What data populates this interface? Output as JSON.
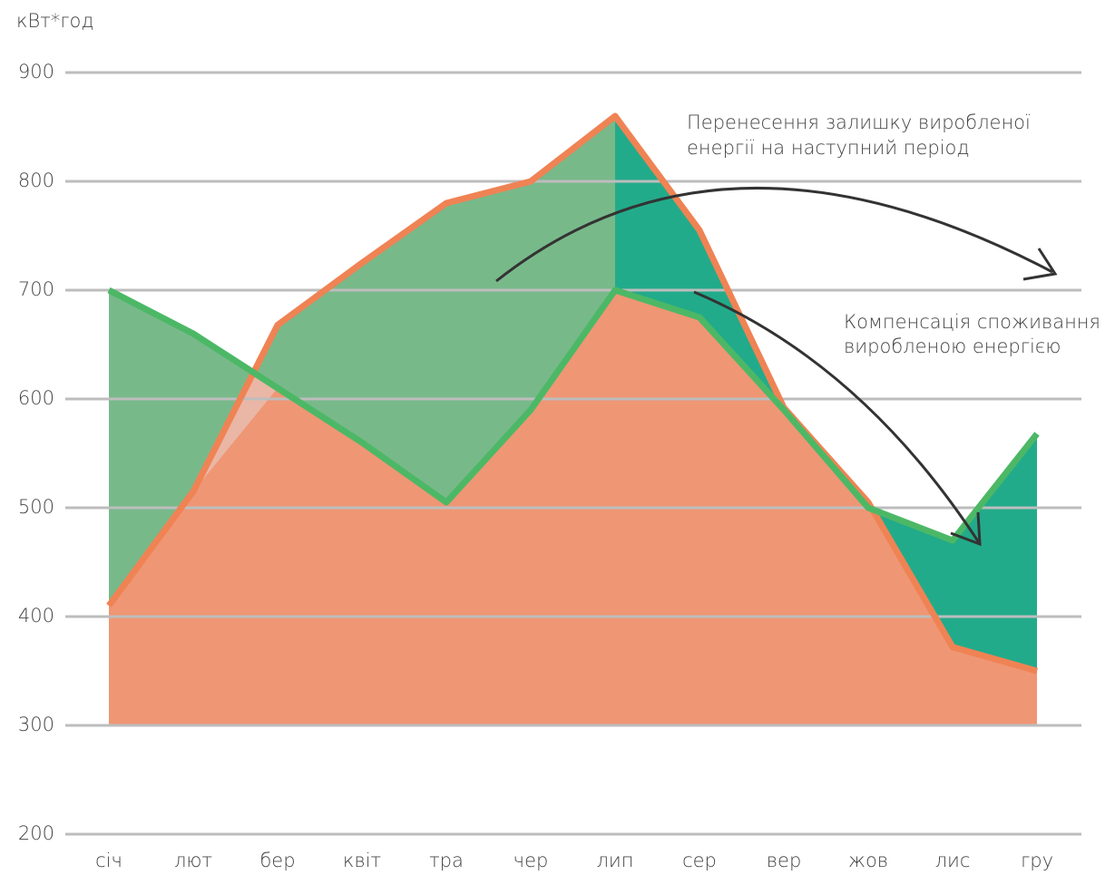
{
  "chart_data": {
    "type": "area",
    "y_axis_label": "кВт*год",
    "categories": [
      "січ",
      "лют",
      "бер",
      "квіт",
      "тра",
      "чер",
      "лип",
      "сер",
      "вер",
      "жов",
      "лис",
      "гру"
    ],
    "series": [
      {
        "color": "#ef8354",
        "values": [
          410,
          515,
          668,
          725,
          780,
          800,
          860,
          755,
          592,
          505,
          372,
          350
        ]
      },
      {
        "color": "#4cb866",
        "values": [
          700,
          660,
          610,
          560,
          505,
          590,
          700,
          675,
          590,
          500,
          470,
          568
        ]
      }
    ],
    "ylim": [
      200,
      900
    ],
    "yticks": [
      200,
      300,
      400,
      500,
      600,
      700,
      800,
      900
    ],
    "grid": true,
    "annotations": [
      {
        "lines": [
          "Перенесення залишку виробленої",
          "енергії на наступний період"
        ]
      },
      {
        "lines": [
          "Компенсація споживання",
          "виробленою енергією"
        ]
      }
    ]
  }
}
